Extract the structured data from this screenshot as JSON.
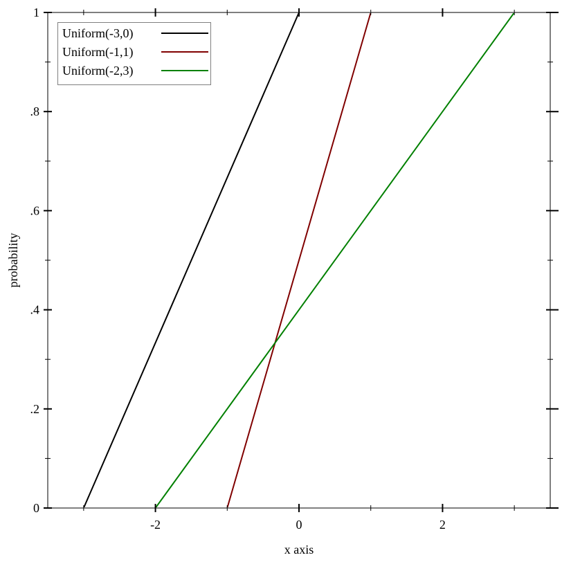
{
  "chart_data": {
    "type": "line",
    "title": "",
    "xlabel": "x axis",
    "ylabel": "probability",
    "xlim": [
      -3.5,
      3.5
    ],
    "ylim": [
      0,
      1
    ],
    "x_major_ticks": [
      -2,
      0,
      2
    ],
    "x_tick_labels": [
      "-2",
      "0",
      "2"
    ],
    "x_minor_ticks": [
      -3,
      -1,
      1,
      3
    ],
    "y_major_ticks": [
      0,
      0.2,
      0.4,
      0.6,
      0.8,
      1
    ],
    "y_tick_labels": [
      "0",
      ".2",
      ".4",
      ".6",
      ".8",
      "1"
    ],
    "y_minor_ticks": [
      0.1,
      0.3,
      0.5,
      0.7,
      0.9
    ],
    "grid": false,
    "legend_position": "top-left",
    "series": [
      {
        "name": "Uniform(-3,0)",
        "color": "#000000",
        "x": [
          -3.5,
          -3,
          0,
          3.5
        ],
        "y": [
          0,
          0,
          1,
          1
        ]
      },
      {
        "name": "Uniform(-1,1)",
        "color": "#800000",
        "x": [
          -3.5,
          -1,
          1,
          3.5
        ],
        "y": [
          0,
          0,
          1,
          1
        ]
      },
      {
        "name": "Uniform(-2,3)",
        "color": "#008000",
        "x": [
          -3.5,
          -2,
          3,
          3.5
        ],
        "y": [
          0,
          0,
          1,
          1
        ]
      }
    ]
  }
}
